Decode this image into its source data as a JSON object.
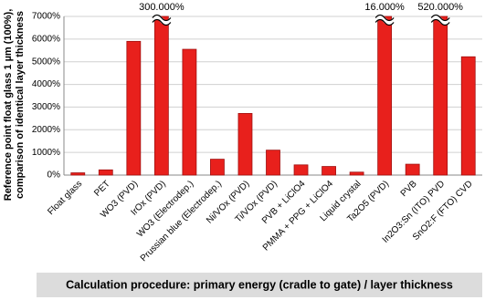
{
  "chart_data": {
    "type": "bar",
    "ylabel": [
      "Reference point float glass 1 µm (100%),",
      "comparison of identical layer thickness"
    ],
    "footer": "Calculation procedure: primary energy (cradle to gate) / layer thickness",
    "categories": [
      "Float glass",
      "PET",
      "WO3 (PVD)",
      "IrOx (PVD)",
      "WO3 (Electrodep.)",
      "Prussian blue (Electrodep.)",
      "Ni/VOx (PVD)",
      "Ti/VOx (PVD)",
      "PVB + LiClO4",
      "PMMA + PPG + LiClO4",
      "Liquid crystal",
      "Ta2O5 (PVD)",
      "PVB",
      "In2O3:Sn (ITO) PVD",
      "SnO2:F (FTO) CVD"
    ],
    "values": [
      100,
      230,
      5900,
      300000,
      5550,
      700,
      2720,
      1100,
      450,
      380,
      130,
      16000,
      480,
      520000,
      5220
    ],
    "value_labels": [
      null,
      null,
      null,
      "300.000%",
      null,
      null,
      null,
      null,
      null,
      null,
      null,
      "16.000%",
      null,
      "520.000%",
      null
    ],
    "color": "#e8201c",
    "ylim": [
      0,
      7000
    ],
    "yticks": [
      {
        "value": 0,
        "label": "0%"
      },
      {
        "value": 1000,
        "label": "1000%"
      },
      {
        "value": 2000,
        "label": "2000%"
      },
      {
        "value": 3000,
        "label": "3000%"
      },
      {
        "value": 4000,
        "label": "4000%"
      },
      {
        "value": 5000,
        "label": "5000%"
      },
      {
        "value": 6000,
        "label": "6000%"
      },
      {
        "value": 7000,
        "label": "7000%"
      }
    ],
    "grid": true
  }
}
